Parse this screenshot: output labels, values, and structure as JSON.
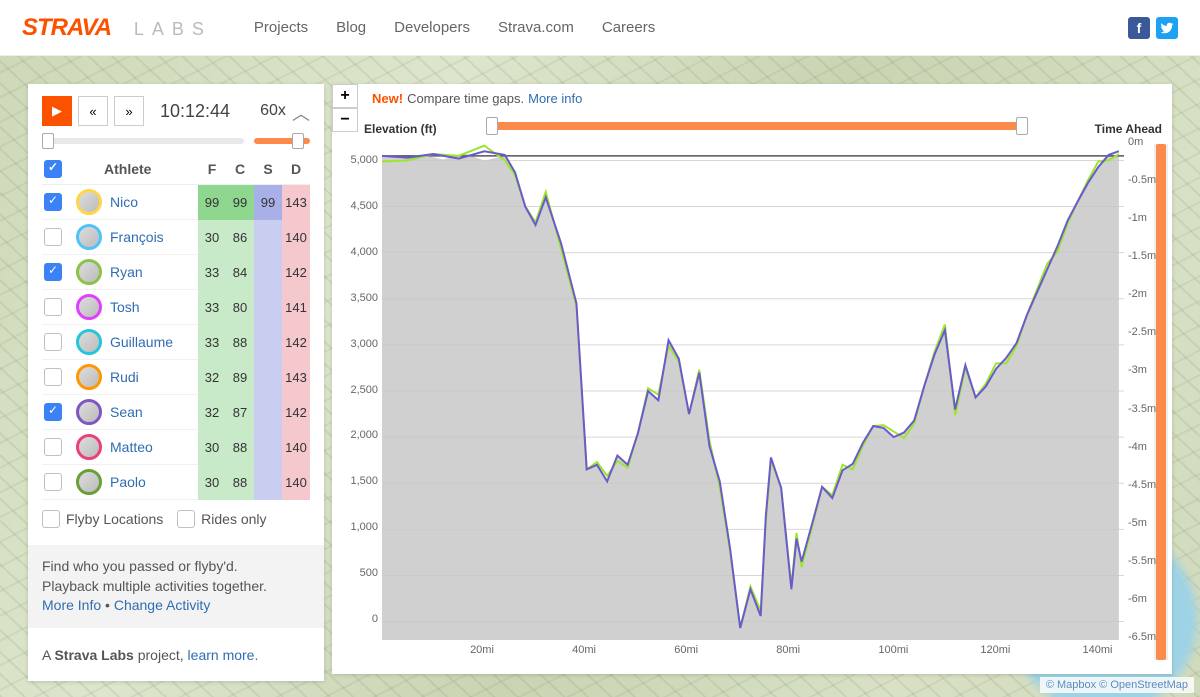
{
  "brand": {
    "name": "STRAVA",
    "sub": "LABS",
    "brand_color": "#fc5200"
  },
  "nav": [
    "Projects",
    "Blog",
    "Developers",
    "Strava.com",
    "Careers"
  ],
  "social": {
    "facebook_bg": "#3b5998",
    "twitter_bg": "#1da1f2"
  },
  "player": {
    "time": "10:12:44",
    "speed": "60x"
  },
  "table": {
    "header": {
      "athlete": "Athlete",
      "cols": [
        "F",
        "C",
        "S",
        "D"
      ]
    },
    "stat_colors": {
      "F": "#c8eac8",
      "C": "#c8eac8",
      "S": "#c9cef0",
      "D": "#f5c8ce"
    },
    "nico_highlight": "#8fd68f",
    "rows": [
      {
        "checked": true,
        "ring": "#ffd54a",
        "name": "Nico",
        "F": "99",
        "C": "99",
        "S": "99",
        "D": "143",
        "hl": true
      },
      {
        "checked": false,
        "ring": "#4fc3f7",
        "name": "François",
        "F": "30",
        "C": "86",
        "S": "",
        "D": "140"
      },
      {
        "checked": true,
        "ring": "#8bc34a",
        "name": "Ryan",
        "F": "33",
        "C": "84",
        "S": "",
        "D": "142"
      },
      {
        "checked": false,
        "ring": "#e040fb",
        "name": "Tosh",
        "F": "33",
        "C": "80",
        "S": "",
        "D": "141"
      },
      {
        "checked": false,
        "ring": "#26c6da",
        "name": "Guillaume",
        "F": "33",
        "C": "88",
        "S": "",
        "D": "142"
      },
      {
        "checked": false,
        "ring": "#ff9800",
        "name": "Rudi",
        "F": "32",
        "C": "89",
        "S": "",
        "D": "143"
      },
      {
        "checked": true,
        "ring": "#7e57c2",
        "name": "Sean",
        "F": "32",
        "C": "87",
        "S": "",
        "D": "142"
      },
      {
        "checked": false,
        "ring": "#ec407a",
        "name": "Matteo",
        "F": "30",
        "C": "88",
        "S": "",
        "D": "140"
      },
      {
        "checked": false,
        "ring": "#689f38",
        "name": "Paolo",
        "F": "30",
        "C": "88",
        "S": "",
        "D": "140"
      }
    ]
  },
  "filters": {
    "flyby": "Flyby Locations",
    "rides": "Rides only"
  },
  "desc": {
    "line1": "Find who you passed or flyby'd.",
    "line2": "Playback multiple activities together.",
    "more": "More Info",
    "sep": " • ",
    "change": "Change Activity"
  },
  "footer": {
    "pre": "A ",
    "strong": "Strava Labs",
    "post": " project, ",
    "link": "learn more."
  },
  "chart": {
    "new_label": "New!",
    "compare": "Compare time gaps.",
    "more_info": "More info",
    "left_axis_label": "Elevation (ft)",
    "right_axis_label": "Time Ahead",
    "elevation_fill": "#c8c8c8",
    "line1_color": "#9be72b",
    "line2_color": "#6a5acd",
    "grid_color": "#d7d7d7",
    "zeroline_color": "#555",
    "xticks": [
      "20mi",
      "40mi",
      "60mi",
      "80mi",
      "100mi",
      "120mi",
      "140mi"
    ],
    "xlim": [
      0,
      145
    ],
    "yticks_left": [
      "0",
      "500",
      "1,000",
      "1,500",
      "2,000",
      "2,500",
      "3,000",
      "3,500",
      "4,000",
      "4,500",
      "5,000"
    ],
    "ylim_left": [
      -200,
      5200
    ],
    "yticks_right": [
      "0m",
      "-0.5m",
      "-1m",
      "-1.5m",
      "-2m",
      "-2.5m",
      "-3m",
      "-3.5m",
      "-4m",
      "-4.5m",
      "-5m",
      "-5.5m",
      "-6m",
      "-6.5m"
    ],
    "elevation": [
      [
        0,
        5050
      ],
      [
        4,
        5020
      ],
      [
        8,
        5060
      ],
      [
        12,
        5010
      ],
      [
        16,
        5080
      ],
      [
        20,
        5000
      ],
      [
        24,
        5050
      ],
      [
        26,
        4870
      ],
      [
        28,
        4500
      ],
      [
        30,
        4300
      ],
      [
        32,
        4600
      ],
      [
        35,
        4100
      ],
      [
        38,
        3450
      ],
      [
        40,
        1650
      ],
      [
        42,
        1700
      ],
      [
        44,
        1520
      ],
      [
        46,
        1800
      ],
      [
        48,
        1700
      ],
      [
        50,
        2040
      ],
      [
        52,
        2500
      ],
      [
        54,
        2400
      ],
      [
        56,
        3050
      ],
      [
        58,
        2850
      ],
      [
        60,
        2250
      ],
      [
        62,
        2700
      ],
      [
        64,
        1900
      ],
      [
        66,
        1520
      ],
      [
        68,
        800
      ],
      [
        70,
        -70
      ],
      [
        72,
        350
      ],
      [
        74,
        60
      ],
      [
        75,
        1140
      ],
      [
        76,
        1780
      ],
      [
        78,
        1450
      ],
      [
        80,
        350
      ],
      [
        81,
        900
      ],
      [
        82,
        650
      ],
      [
        84,
        1050
      ],
      [
        86,
        1460
      ],
      [
        88,
        1340
      ],
      [
        90,
        1640
      ],
      [
        92,
        1710
      ],
      [
        94,
        1940
      ],
      [
        96,
        2120
      ],
      [
        98,
        2100
      ],
      [
        100,
        2000
      ],
      [
        102,
        2050
      ],
      [
        104,
        2180
      ],
      [
        106,
        2560
      ],
      [
        108,
        2900
      ],
      [
        110,
        3160
      ],
      [
        112,
        2300
      ],
      [
        114,
        2780
      ],
      [
        116,
        2430
      ],
      [
        118,
        2550
      ],
      [
        120,
        2740
      ],
      [
        122,
        2860
      ],
      [
        124,
        3020
      ],
      [
        126,
        3320
      ],
      [
        128,
        3570
      ],
      [
        130,
        3820
      ],
      [
        132,
        4070
      ],
      [
        134,
        4350
      ],
      [
        136,
        4560
      ],
      [
        138,
        4760
      ],
      [
        140,
        4930
      ],
      [
        142,
        5060
      ],
      [
        144,
        5060
      ]
    ],
    "series_line": [
      [
        0,
        5050
      ],
      [
        5,
        5030
      ],
      [
        10,
        5070
      ],
      [
        15,
        5020
      ],
      [
        20,
        5100
      ],
      [
        24,
        5060
      ],
      [
        26,
        4870
      ],
      [
        28,
        4500
      ],
      [
        30,
        4300
      ],
      [
        32,
        4600
      ],
      [
        35,
        4100
      ],
      [
        38,
        3450
      ],
      [
        40,
        1650
      ],
      [
        42,
        1700
      ],
      [
        44,
        1520
      ],
      [
        46,
        1800
      ],
      [
        48,
        1700
      ],
      [
        50,
        2040
      ],
      [
        52,
        2500
      ],
      [
        54,
        2400
      ],
      [
        56,
        3050
      ],
      [
        58,
        2850
      ],
      [
        60,
        2250
      ],
      [
        62,
        2700
      ],
      [
        64,
        1900
      ],
      [
        66,
        1520
      ],
      [
        68,
        800
      ],
      [
        70,
        -70
      ],
      [
        72,
        350
      ],
      [
        74,
        60
      ],
      [
        75,
        1140
      ],
      [
        76,
        1780
      ],
      [
        78,
        1450
      ],
      [
        80,
        350
      ],
      [
        81,
        900
      ],
      [
        82,
        650
      ],
      [
        84,
        1050
      ],
      [
        86,
        1460
      ],
      [
        88,
        1340
      ],
      [
        90,
        1640
      ],
      [
        92,
        1710
      ],
      [
        94,
        1940
      ],
      [
        96,
        2120
      ],
      [
        98,
        2100
      ],
      [
        100,
        2000
      ],
      [
        102,
        2050
      ],
      [
        104,
        2180
      ],
      [
        106,
        2560
      ],
      [
        108,
        2900
      ],
      [
        110,
        3160
      ],
      [
        112,
        2300
      ],
      [
        114,
        2780
      ],
      [
        116,
        2430
      ],
      [
        118,
        2550
      ],
      [
        120,
        2740
      ],
      [
        122,
        2860
      ],
      [
        124,
        3020
      ],
      [
        126,
        3320
      ],
      [
        128,
        3570
      ],
      [
        130,
        3820
      ],
      [
        132,
        4070
      ],
      [
        134,
        4350
      ],
      [
        136,
        4560
      ],
      [
        138,
        4760
      ],
      [
        140,
        4930
      ],
      [
        142,
        5060
      ],
      [
        144,
        5100
      ]
    ]
  },
  "attribution": {
    "mapbox": "© Mapbox",
    "osm": "© OpenStreetMap"
  }
}
